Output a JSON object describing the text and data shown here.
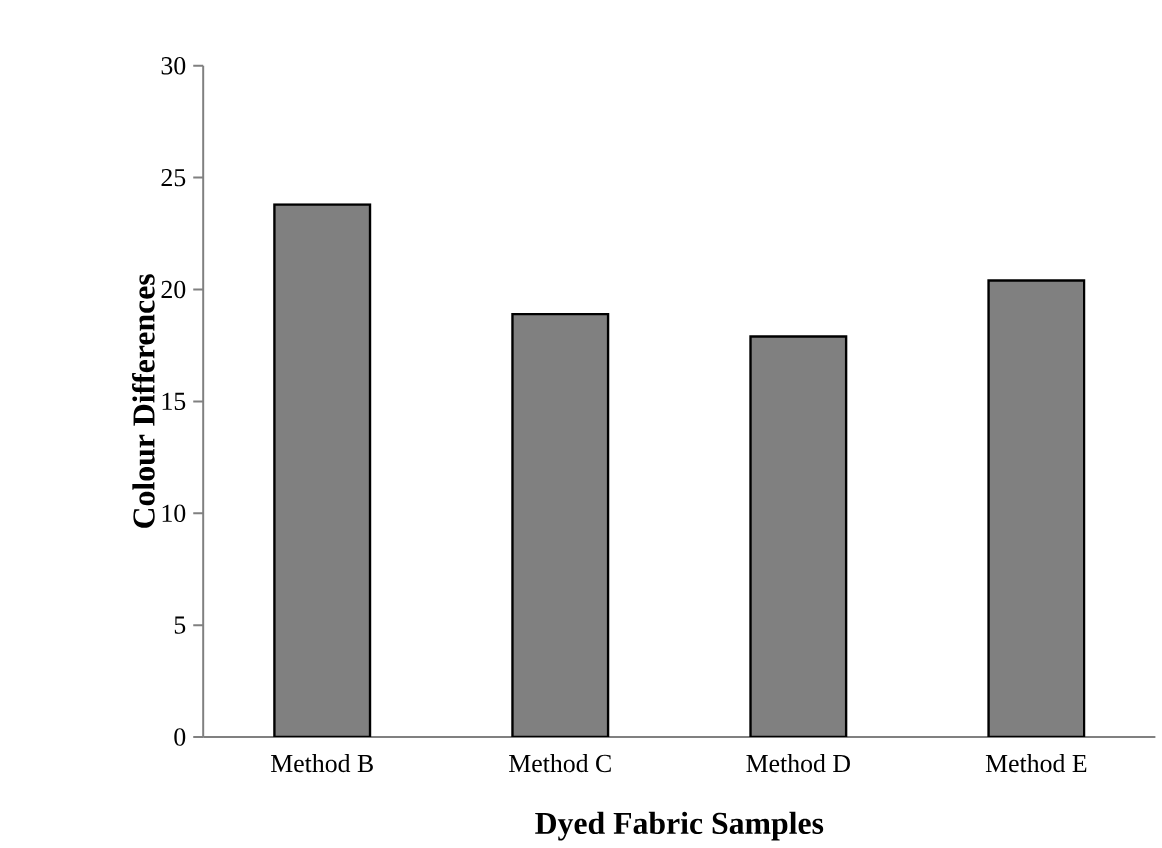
{
  "chart_data": {
    "type": "bar",
    "xlabel": "Dyed Fabric Samples",
    "ylabel": "Colour Differences",
    "categories": [
      "Method B",
      "Method C",
      "Method D",
      "Method E"
    ],
    "values": [
      23.8,
      18.9,
      17.9,
      20.4
    ],
    "color": "#808080",
    "ylim": [
      0,
      30
    ],
    "yticks": [
      0,
      5,
      10,
      15,
      20,
      25,
      30
    ],
    "grid": false
  }
}
